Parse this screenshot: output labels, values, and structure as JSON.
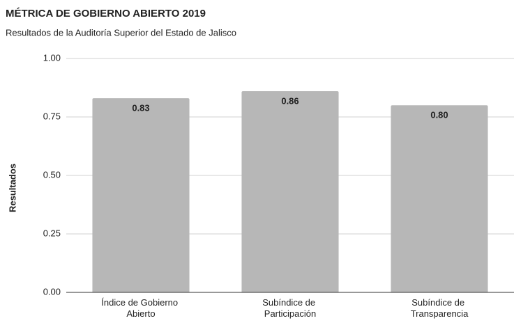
{
  "chart_data": {
    "type": "bar",
    "title": "MÉTRICA DE GOBIERNO ABIERTO 2019",
    "subtitle": "Resultados de la Auditoría Superior del Estado de Jalisco",
    "y_label": "Resultados",
    "categories": [
      "Índice de Gobierno Abierto",
      "Subíndice de Participación",
      "Subíndice de Transparencia"
    ],
    "values": [
      0.83,
      0.86,
      0.8
    ],
    "value_labels": [
      "0.83",
      "0.86",
      "0.80"
    ],
    "color": "#b7b7b7",
    "ylim": [
      0,
      1
    ],
    "yticks": [
      {
        "value": 0,
        "label": "0.00"
      },
      {
        "value": 0.25,
        "label": "0.25"
      },
      {
        "value": 0.5,
        "label": "0.50"
      },
      {
        "value": 0.75,
        "label": "0.75"
      },
      {
        "value": 1,
        "label": "1.00"
      }
    ],
    "grid": true
  }
}
